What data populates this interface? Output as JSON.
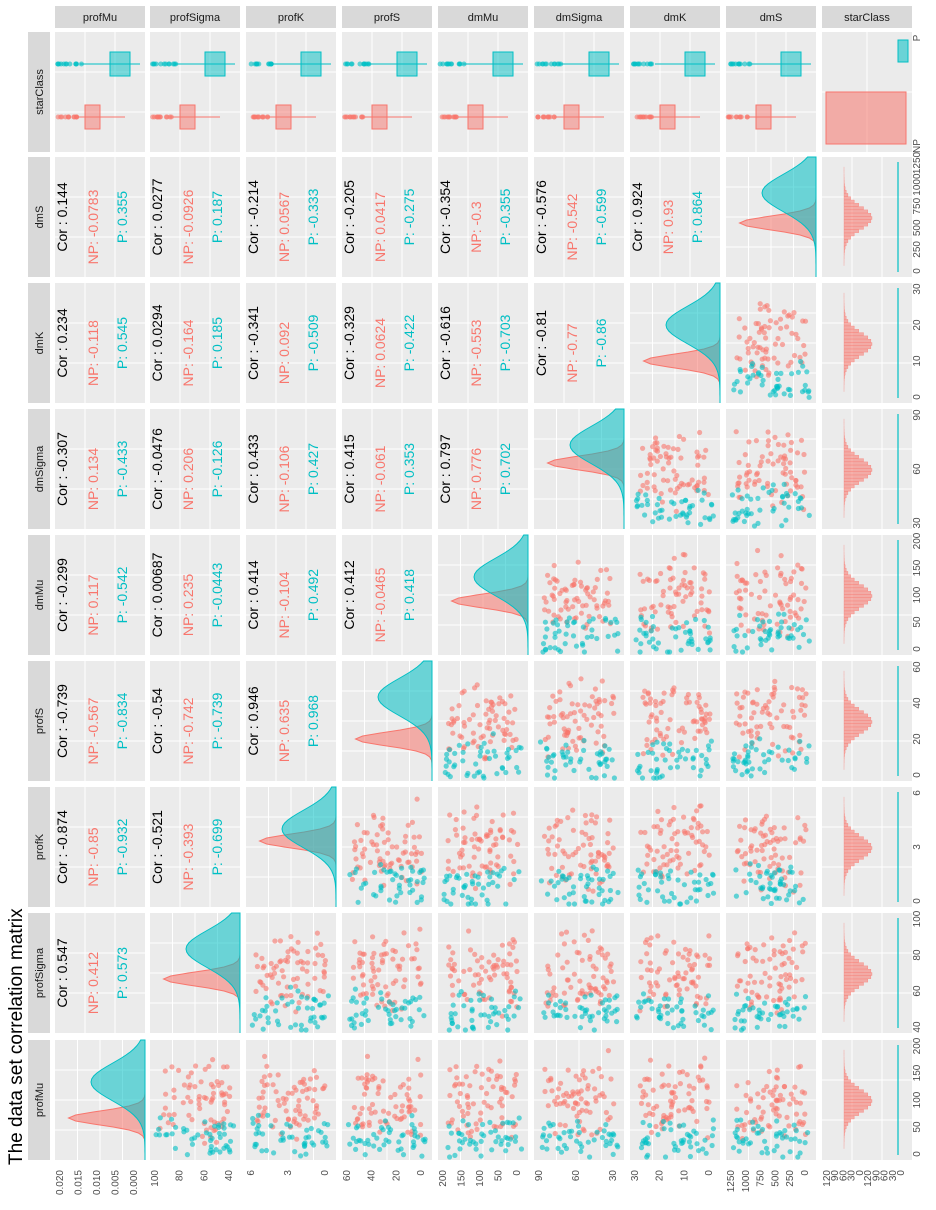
{
  "title": "The data set correlation matrix",
  "colors": {
    "NP": "#F8766D",
    "P": "#00BFC4",
    "panel_bg": "#EBEBEB",
    "strip_bg": "#D9D9D9"
  },
  "chart_data": {
    "type": "scatter",
    "title": "The data set correlation matrix",
    "variables": [
      "profMu",
      "profSigma",
      "profK",
      "profS",
      "dmMu",
      "dmSigma",
      "dmK",
      "dmS",
      "starClass"
    ],
    "groups": [
      "NP",
      "P"
    ],
    "correlations": [
      {
        "pair": [
          "profMu",
          "profSigma"
        ],
        "cor": "Cor : 0.547",
        "NP": "NP: 0.412",
        "P": "P: 0.573"
      },
      {
        "pair": [
          "profMu",
          "profK"
        ],
        "cor": "Cor : -0.874",
        "NP": "NP: -0.85",
        "P": "P: -0.932"
      },
      {
        "pair": [
          "profMu",
          "profS"
        ],
        "cor": "Cor : -0.739",
        "NP": "NP: -0.567",
        "P": "P: -0.834"
      },
      {
        "pair": [
          "profMu",
          "dmMu"
        ],
        "cor": "Cor : -0.299",
        "NP": "NP: 0.117",
        "P": "P: -0.542"
      },
      {
        "pair": [
          "profMu",
          "dmSigma"
        ],
        "cor": "Cor : -0.307",
        "NP": "NP: 0.134",
        "P": "P: -0.433"
      },
      {
        "pair": [
          "profMu",
          "dmK"
        ],
        "cor": "Cor : 0.234",
        "NP": "NP: -0.118",
        "P": "P: 0.545"
      },
      {
        "pair": [
          "profMu",
          "dmS"
        ],
        "cor": "Cor : 0.144",
        "NP": "NP: -0.0783",
        "P": "P: 0.355"
      },
      {
        "pair": [
          "profSigma",
          "profK"
        ],
        "cor": "Cor : -0.521",
        "NP": "NP: -0.393",
        "P": "P: -0.699"
      },
      {
        "pair": [
          "profSigma",
          "profS"
        ],
        "cor": "Cor : -0.54",
        "NP": "NP: -0.742",
        "P": "P: -0.739"
      },
      {
        "pair": [
          "profSigma",
          "dmMu"
        ],
        "cor": "Cor : 0.00687",
        "NP": "NP: 0.235",
        "P": "P: -0.0443"
      },
      {
        "pair": [
          "profSigma",
          "dmSigma"
        ],
        "cor": "Cor : -0.0476",
        "NP": "NP: 0.206",
        "P": "P: -0.126"
      },
      {
        "pair": [
          "profSigma",
          "dmK"
        ],
        "cor": "Cor : 0.0294",
        "NP": "NP: -0.164",
        "P": "P: 0.185"
      },
      {
        "pair": [
          "profSigma",
          "dmS"
        ],
        "cor": "Cor : 0.0277",
        "NP": "NP: -0.0926",
        "P": "P: 0.187"
      },
      {
        "pair": [
          "profK",
          "profS"
        ],
        "cor": "Cor : 0.946",
        "NP": "NP: 0.635",
        "P": "P: 0.968"
      },
      {
        "pair": [
          "profK",
          "dmMu"
        ],
        "cor": "Cor : 0.414",
        "NP": "NP: -0.104",
        "P": "P: 0.492"
      },
      {
        "pair": [
          "profK",
          "dmSigma"
        ],
        "cor": "Cor : 0.433",
        "NP": "NP: -0.106",
        "P": "P: 0.427"
      },
      {
        "pair": [
          "profK",
          "dmK"
        ],
        "cor": "Cor : -0.341",
        "NP": "NP: 0.092",
        "P": "P: -0.509"
      },
      {
        "pair": [
          "profK",
          "dmS"
        ],
        "cor": "Cor : -0.214",
        "NP": "NP: 0.0567",
        "P": "P: -0.333"
      },
      {
        "pair": [
          "profS",
          "dmMu"
        ],
        "cor": "Cor : 0.412",
        "NP": "NP: -0.0465",
        "P": "P: 0.418"
      },
      {
        "pair": [
          "profS",
          "dmSigma"
        ],
        "cor": "Cor : 0.415",
        "NP": "NP: -0.061",
        "P": "P: 0.353"
      },
      {
        "pair": [
          "profS",
          "dmK"
        ],
        "cor": "Cor : -0.329",
        "NP": "NP: 0.0624",
        "P": "P: -0.422"
      },
      {
        "pair": [
          "profS",
          "dmS"
        ],
        "cor": "Cor : -0.205",
        "NP": "NP: 0.0417",
        "P": "P: -0.275"
      },
      {
        "pair": [
          "dmMu",
          "dmSigma"
        ],
        "cor": "Cor : 0.797",
        "NP": "NP: 0.776",
        "P": "P: 0.702"
      },
      {
        "pair": [
          "dmMu",
          "dmK"
        ],
        "cor": "Cor : -0.616",
        "NP": "NP: -0.553",
        "P": "P: -0.703"
      },
      {
        "pair": [
          "dmMu",
          "dmS"
        ],
        "cor": "Cor : -0.354",
        "NP": "NP: -0.3",
        "P": "P: -0.355"
      },
      {
        "pair": [
          "dmSigma",
          "dmK"
        ],
        "cor": "Cor : -0.81",
        "NP": "NP: -0.77",
        "P": "P: -0.86"
      },
      {
        "pair": [
          "dmSigma",
          "dmS"
        ],
        "cor": "Cor : -0.576",
        "NP": "NP: -0.542",
        "P": "P: -0.599"
      },
      {
        "pair": [
          "dmK",
          "dmS"
        ],
        "cor": "Cor : 0.924",
        "NP": "NP: 0.93",
        "P": "P: 0.864"
      }
    ],
    "tick_labels": {
      "profMu": [
        "0.020",
        "0.015",
        "0.010",
        "0.005",
        "0.000"
      ],
      "profSigma": [
        "100",
        "80",
        "60",
        "40"
      ],
      "profK": [
        "6",
        "3",
        "0"
      ],
      "profS": [
        "60",
        "40",
        "20",
        "0"
      ],
      "dmMu": [
        "200",
        "150",
        "100",
        "50",
        "0"
      ],
      "dmSigma": [
        "90",
        "60",
        "30"
      ],
      "dmK": [
        "30",
        "20",
        "10",
        "0"
      ],
      "dmS": [
        "1250",
        "1000",
        "750",
        "500",
        "250",
        "0"
      ],
      "starClass": [
        "120",
        "90",
        "60",
        "30",
        "0",
        "120",
        "90",
        "60",
        "30",
        "0"
      ],
      "right_profMu": [
        "0",
        "50",
        "100",
        "150",
        "200"
      ],
      "right_profSigma": [
        "40",
        "60",
        "80",
        "100"
      ],
      "right_profK": [
        "0",
        "3",
        "6"
      ],
      "right_profS": [
        "0",
        "20",
        "40",
        "60"
      ],
      "right_dmMu": [
        "0",
        "50",
        "100",
        "150",
        "200"
      ],
      "right_dmSigma": [
        "30",
        "60",
        "90"
      ],
      "right_dmK": [
        "0",
        "10",
        "20",
        "30"
      ],
      "right_dmS": [
        "0",
        "250",
        "500",
        "750",
        "1000",
        "1250"
      ],
      "right_starClass": [
        "NP",
        "P"
      ]
    }
  }
}
